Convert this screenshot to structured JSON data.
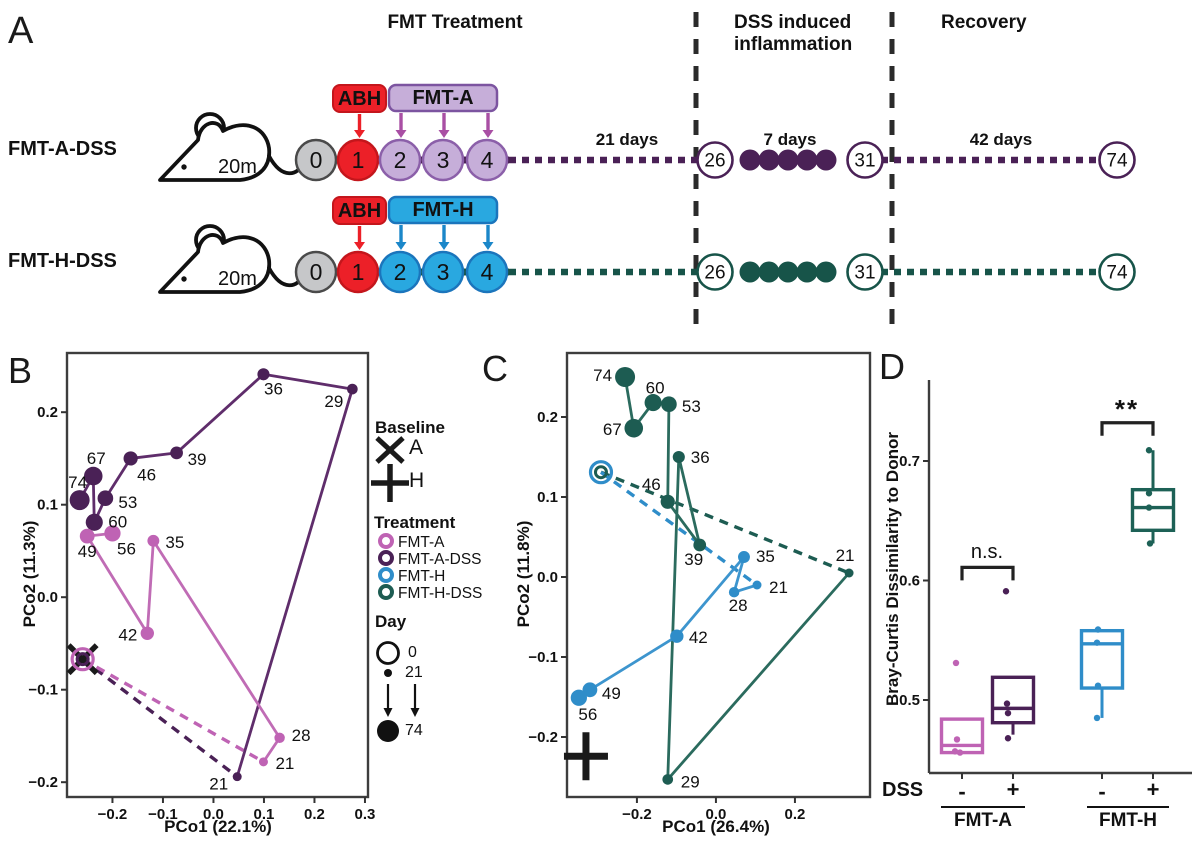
{
  "panel_a": {
    "label": "A",
    "phases": [
      {
        "title": "FMT Treatment"
      },
      {
        "title": "DSS induced\ninflammation"
      },
      {
        "title": "Recovery"
      }
    ],
    "abx_color": "#EC2028",
    "node0_fill": "#C6C7C9",
    "node1_fill": "#EC2028",
    "rows": [
      {
        "group_label": "FMT-A-DSS",
        "mouse_label": "20m",
        "abx_label": "ABH",
        "fmt_label": "FMT-A",
        "node_labels": [
          "0",
          "1",
          "2",
          "3",
          "4"
        ],
        "span1_label": "21 days",
        "dss_start": "26",
        "dss_span_label": "7 days",
        "dss_end": "31",
        "span2_label": "42 days",
        "end_label": "74",
        "colors": {
          "line": "#4A2156",
          "node_fill": "#C6AED9",
          "node_stroke": "#8B5FA9",
          "box_fill": "#C6AED9",
          "box_stroke": "#7C54A0",
          "arrow": "#A94FA4"
        }
      },
      {
        "group_label": "FMT-H-DSS",
        "mouse_label": "20m",
        "abx_label": "ABH",
        "fmt_label": "FMT-H",
        "node_labels": [
          "0",
          "1",
          "2",
          "3",
          "4"
        ],
        "dss_start": "26",
        "dss_end": "31",
        "end_label": "74",
        "colors": {
          "line": "#175449",
          "node_fill": "#29A8E0",
          "node_stroke": "#1B75BC",
          "box_fill": "#29A8E0",
          "box_stroke": "#1B75BC",
          "arrow": "#1B87C9"
        }
      }
    ]
  },
  "legend": {
    "baseline": {
      "title": "Baseline",
      "items": [
        {
          "symbol": "x",
          "label": "A"
        },
        {
          "symbol": "plus",
          "label": "H"
        }
      ]
    },
    "treatment": {
      "title": "Treatment",
      "items": [
        {
          "label": "FMT-A",
          "color": "#BF63B4"
        },
        {
          "label": "FMT-A-DSS",
          "color": "#4A2156"
        },
        {
          "label": "FMT-H",
          "color": "#2F8DC9"
        },
        {
          "label": "FMT-H-DSS",
          "color": "#1D5C52"
        }
      ]
    },
    "day": {
      "title": "Day",
      "min": "0",
      "mid": "21",
      "max": "74"
    }
  },
  "chart_data": [
    {
      "id": "B",
      "panel_label": "B",
      "type": "line-scatter",
      "xlabel": "PCo1 (22.1%)",
      "ylabel": "PCo2 (11.3%)",
      "xlim": [
        -0.29,
        0.306
      ],
      "ylim": [
        -0.216,
        0.264
      ],
      "xticks": [
        -0.2,
        -0.1,
        0,
        0.1,
        0.2,
        0.3
      ],
      "yticks": [
        -0.2,
        -0.1,
        0,
        0.1,
        0.2
      ],
      "baseline": {
        "symbol": "x",
        "label": "A",
        "x": -0.259,
        "y": -0.067
      },
      "day0": {
        "x": -0.259,
        "y": -0.067,
        "rings": [
          "#BF63B4",
          "#4A2156"
        ]
      },
      "series": [
        {
          "name": "FMT-A-DSS",
          "color": "#4A2156",
          "line_color": "#5F2D6B",
          "points": [
            {
              "day": 21,
              "x": 0.047,
              "y": -0.194,
              "dx": -9,
              "dy": 13,
              "anchor": "end"
            },
            {
              "day": 29,
              "x": 0.275,
              "y": 0.225,
              "dx": -9,
              "dy": 18,
              "anchor": "end"
            },
            {
              "day": 36,
              "x": 0.099,
              "y": 0.241,
              "dx": 10,
              "dy": 20,
              "anchor": "middle"
            },
            {
              "day": 39,
              "x": -0.073,
              "y": 0.156,
              "dx": 11,
              "dy": 12,
              "anchor": "start"
            },
            {
              "day": 46,
              "x": -0.164,
              "y": 0.15,
              "dx": 16,
              "dy": 22,
              "anchor": "middle"
            },
            {
              "day": 53,
              "x": -0.214,
              "y": 0.107,
              "dx": 13,
              "dy": 10,
              "anchor": "start"
            },
            {
              "day": 60,
              "x": -0.236,
              "y": 0.081,
              "dx": 14,
              "dy": 5,
              "anchor": "start"
            },
            {
              "day": 67,
              "x": -0.238,
              "y": 0.131,
              "dx": 3,
              "dy": -12,
              "anchor": "middle"
            },
            {
              "day": 74,
              "x": -0.265,
              "y": 0.105,
              "dx": -2,
              "dy": -12,
              "anchor": "middle"
            }
          ]
        },
        {
          "name": "FMT-A",
          "color": "#BF63B4",
          "line_color": "#C06CB5",
          "points": [
            {
              "day": 21,
              "x": 0.099,
              "y": -0.178,
              "dx": 12,
              "dy": 7,
              "anchor": "start"
            },
            {
              "day": 28,
              "x": 0.131,
              "y": -0.152,
              "dx": 12,
              "dy": 3,
              "anchor": "start"
            },
            {
              "day": 35,
              "x": -0.119,
              "y": 0.061,
              "dx": 12,
              "dy": 7,
              "anchor": "start"
            },
            {
              "day": 42,
              "x": -0.131,
              "y": -0.039,
              "dx": -10,
              "dy": 7,
              "anchor": "end"
            },
            {
              "day": 49,
              "x": -0.25,
              "y": 0.066,
              "dx": 0,
              "dy": 21,
              "anchor": "middle"
            },
            {
              "day": 56,
              "x": -0.2,
              "y": 0.069,
              "dx": 14,
              "dy": 21,
              "anchor": "middle"
            }
          ]
        }
      ]
    },
    {
      "id": "C",
      "panel_label": "C",
      "type": "line-scatter",
      "xlabel": "PCo1 (26.4%)",
      "ylabel": "PCo2 (11.8%)",
      "xlim": [
        -0.377,
        0.39
      ],
      "ylim": [
        -0.275,
        0.28
      ],
      "xticks": [
        -0.2,
        0,
        0.2
      ],
      "yticks": [
        -0.2,
        -0.1,
        0,
        0.1,
        0.2
      ],
      "baseline": {
        "symbol": "plus",
        "label": "H",
        "x": -0.329,
        "y": -0.224
      },
      "day0": {
        "x": -0.291,
        "y": 0.131,
        "rings": [
          "#2F8DC9",
          "#1D5C52"
        ]
      },
      "series": [
        {
          "name": "FMT-H-DSS",
          "color": "#1D5C52",
          "line_color": "#2B6B5E",
          "points": [
            {
              "day": 21,
              "x": 0.337,
              "y": 0.005,
              "dx": -4,
              "dy": -12,
              "anchor": "middle"
            },
            {
              "day": 29,
              "x": -0.122,
              "y": -0.253,
              "dx": 13,
              "dy": 8,
              "anchor": "start"
            },
            {
              "day": 36,
              "x": -0.094,
              "y": 0.15,
              "dx": 12,
              "dy": 6,
              "anchor": "start"
            },
            {
              "day": 39,
              "x": -0.041,
              "y": 0.04,
              "dx": -6,
              "dy": 20,
              "anchor": "middle"
            },
            {
              "day": 46,
              "x": -0.122,
              "y": 0.094,
              "dx": -7,
              "dy": -12,
              "anchor": "end"
            },
            {
              "day": 53,
              "x": -0.119,
              "y": 0.216,
              "dx": 13,
              "dy": 8,
              "anchor": "start"
            },
            {
              "day": 60,
              "x": -0.159,
              "y": 0.218,
              "dx": 2,
              "dy": -9,
              "anchor": "middle"
            },
            {
              "day": 67,
              "x": -0.208,
              "y": 0.186,
              "dx": -12,
              "dy": 7,
              "anchor": "end"
            },
            {
              "day": 74,
              "x": -0.23,
              "y": 0.25,
              "dx": -13,
              "dy": 4,
              "anchor": "end"
            }
          ]
        },
        {
          "name": "FMT-H",
          "color": "#2F8DC9",
          "line_color": "#3D95CE",
          "points": [
            {
              "day": 21,
              "x": 0.104,
              "y": -0.01,
              "dx": 12,
              "dy": 8,
              "anchor": "start"
            },
            {
              "day": 28,
              "x": 0.046,
              "y": -0.019,
              "dx": 4,
              "dy": 19,
              "anchor": "middle"
            },
            {
              "day": 35,
              "x": 0.071,
              "y": 0.025,
              "dx": 12,
              "dy": 5,
              "anchor": "start"
            },
            {
              "day": 42,
              "x": -0.099,
              "y": -0.074,
              "dx": 12,
              "dy": 7,
              "anchor": "start"
            },
            {
              "day": 49,
              "x": -0.319,
              "y": -0.141,
              "dx": 12,
              "dy": 9,
              "anchor": "start"
            },
            {
              "day": 56,
              "x": -0.347,
              "y": -0.151,
              "dx": 9,
              "dy": 22,
              "anchor": "middle"
            }
          ]
        }
      ]
    },
    {
      "id": "D",
      "panel_label": "D",
      "type": "boxplot",
      "ylabel": "Bray-Curtis Dissimilarity to Donor",
      "yticks": [
        0.5,
        0.6,
        0.7
      ],
      "ylim": [
        0.435,
        0.77
      ],
      "xaxis": {
        "row_label": "DSS",
        "dss_values": [
          "-",
          "+",
          "-",
          "+"
        ],
        "group_labels": [
          "FMT-A",
          "FMT-H"
        ]
      },
      "groups": [
        {
          "treatment": "FMT-A",
          "dss": "-",
          "color": "#BF63B4",
          "whisker_lo": 0.456,
          "q1": 0.456,
          "median": 0.462,
          "q3": 0.484,
          "whisker_hi": 0.484,
          "dots": [
            {
              "v": 0.531,
              "dx": -6
            },
            {
              "v": 0.467,
              "dx": -5
            },
            {
              "v": 0.457,
              "dx": -7
            },
            {
              "v": 0.456,
              "dx": -2
            }
          ]
        },
        {
          "treatment": "FMT-A",
          "dss": "+",
          "color": "#4A2156",
          "whisker_lo": 0.471,
          "q1": 0.481,
          "median": 0.493,
          "q3": 0.519,
          "whisker_hi": 0.519,
          "dots": [
            {
              "v": 0.591,
              "dx": -7
            },
            {
              "v": 0.497,
              "dx": -6
            },
            {
              "v": 0.489,
              "dx": -5
            },
            {
              "v": 0.468,
              "dx": -5
            }
          ]
        },
        {
          "treatment": "FMT-H",
          "dss": "-",
          "color": "#2F8DC9",
          "whisker_lo": 0.485,
          "q1": 0.51,
          "median": 0.547,
          "q3": 0.558,
          "whisker_hi": 0.558,
          "dots": [
            {
              "v": 0.559,
              "dx": -4
            },
            {
              "v": 0.548,
              "dx": -5
            },
            {
              "v": 0.512,
              "dx": -4
            },
            {
              "v": 0.485,
              "dx": -5
            }
          ]
        },
        {
          "treatment": "FMT-H",
          "dss": "+",
          "color": "#1D6156",
          "whisker_lo": 0.631,
          "q1": 0.642,
          "median": 0.661,
          "q3": 0.676,
          "whisker_hi": 0.709,
          "dots": [
            {
              "v": 0.709,
              "dx": -4
            },
            {
              "v": 0.673,
              "dx": -4
            },
            {
              "v": 0.661,
              "dx": -4
            },
            {
              "v": 0.631,
              "dx": -3
            }
          ]
        }
      ],
      "annotations": [
        {
          "text": "n.s.",
          "from": 0,
          "to": 1,
          "bar_value": 0.611
        },
        {
          "text": "**",
          "from": 2,
          "to": 3,
          "bar_value": 0.732
        }
      ]
    }
  ]
}
